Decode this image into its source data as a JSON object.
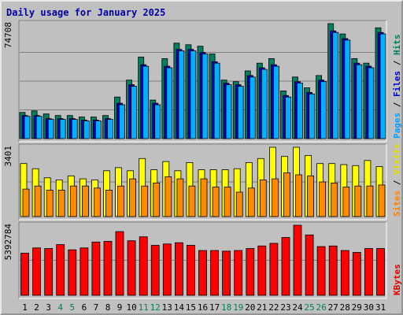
{
  "chart_data": {
    "type": "bar",
    "title": "Daily usage for January 2025",
    "categories": [
      "1",
      "2",
      "3",
      "4",
      "5",
      "6",
      "7",
      "8",
      "9",
      "10",
      "11",
      "12",
      "13",
      "14",
      "15",
      "16",
      "17",
      "18",
      "19",
      "20",
      "21",
      "22",
      "23",
      "24",
      "25",
      "26",
      "27",
      "28",
      "29",
      "30",
      "31"
    ],
    "weekend_days": [
      "4",
      "5",
      "11",
      "12",
      "18",
      "19",
      "25",
      "26"
    ],
    "panels": [
      {
        "max_label": "74708",
        "ymax": 74708,
        "side_labels": [
          {
            "text": "Pages",
            "color": "#00a0ff"
          },
          {
            "text": " / ",
            "color": "#000000"
          },
          {
            "text": "Files",
            "color": "#0000d0"
          },
          {
            "text": " / ",
            "color": "#000000"
          },
          {
            "text": "Hits",
            "color": "#008060"
          }
        ],
        "series": [
          {
            "name": "Hits",
            "color": "#008060",
            "values": [
              17000,
              18000,
              16000,
              15000,
              15000,
              14000,
              14000,
              15000,
              27000,
              38000,
              53000,
              25000,
              52000,
              62000,
              61000,
              60000,
              55000,
              38000,
              37000,
              44000,
              49000,
              52000,
              31000,
              40000,
              33000,
              41000,
              74708,
              68000,
              52000,
              49000,
              72000
            ]
          },
          {
            "name": "Files",
            "color": "#0000d0",
            "values": [
              15000,
              15000,
              13000,
              13000,
              13000,
              12000,
              12000,
              13000,
              23000,
              35000,
              48000,
              23000,
              47000,
              58000,
              58000,
              56000,
              50000,
              36000,
              35000,
              41000,
              46000,
              48000,
              28000,
              37000,
              30000,
              38000,
              70000,
              65000,
              49000,
              47000,
              69000
            ]
          },
          {
            "name": "Pages",
            "color": "#00b0ff",
            "values": [
              14500,
              14500,
              12500,
              12500,
              12500,
              11500,
              11500,
              12500,
              22000,
              34000,
              47000,
              22000,
              46000,
              57000,
              57000,
              55000,
              49000,
              35000,
              34000,
              40000,
              45000,
              47000,
              27000,
              36000,
              29000,
              37000,
              69000,
              64000,
              48000,
              46000,
              68000
            ]
          }
        ]
      },
      {
        "max_label": "3401",
        "ymax": 3401,
        "side_labels": [
          {
            "text": "Sites",
            "color": "#ff8000"
          },
          {
            "text": " / ",
            "color": "#000000"
          },
          {
            "text": "Visits",
            "color": "#e0e000"
          }
        ],
        "series": [
          {
            "name": "Visits",
            "color": "#ffff00",
            "values": [
              2600,
              2350,
              1900,
              1800,
              2000,
              1850,
              1800,
              2250,
              2400,
              2250,
              2850,
              2300,
              2700,
              2250,
              2650,
              2300,
              2300,
              2300,
              2350,
              2650,
              2850,
              3401,
              2950,
              3401,
              3000,
              2600,
              2600,
              2550,
              2500,
              2750,
              2450
            ]
          },
          {
            "name": "Sites",
            "color": "#ff8c00",
            "values": [
              1350,
              1500,
              1300,
              1300,
              1500,
              1500,
              1400,
              1300,
              1500,
              1850,
              1500,
              1650,
              1950,
              1850,
              1500,
              1850,
              1450,
              1450,
              1200,
              1400,
              1800,
              1850,
              2150,
              2050,
              2000,
              1700,
              1650,
              1450,
              1500,
              1500,
              1550
            ]
          }
        ]
      },
      {
        "max_label": "5392784",
        "ymax": 5392784,
        "side_labels": [
          {
            "text": "KBytes",
            "color": "#e00000"
          }
        ],
        "series": [
          {
            "name": "KBytes",
            "color": "#ff0000",
            "values": [
              3250000,
              3650000,
              3600000,
              3900000,
              3500000,
              3650000,
              4100000,
              4150000,
              4900000,
              4200000,
              4500000,
              3850000,
              3950000,
              4050000,
              3850000,
              3450000,
              3450000,
              3400000,
              3450000,
              3600000,
              3800000,
              4000000,
              4450000,
              5392784,
              4650000,
              3750000,
              3800000,
              3450000,
              3300000,
              3600000,
              3600000
            ]
          }
        ]
      }
    ]
  }
}
